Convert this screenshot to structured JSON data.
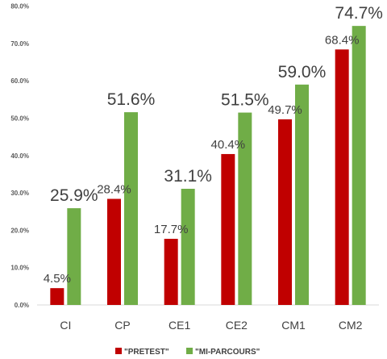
{
  "chart_data": {
    "type": "bar",
    "categories": [
      "CI",
      "CP",
      "CE1",
      "CE2",
      "CM1",
      "CM2"
    ],
    "series": [
      {
        "name": "\"PRETEST\"",
        "values": [
          4.5,
          28.4,
          17.7,
          40.4,
          49.7,
          68.4
        ],
        "labels": [
          "4.5%",
          "28.4%",
          "17.7%",
          "40.4%",
          "49.7%",
          "68.4%"
        ],
        "color": "#c00000"
      },
      {
        "name": "\"MI-PARCOURS\"",
        "values": [
          25.9,
          51.6,
          31.1,
          51.5,
          59.0,
          74.7
        ],
        "labels": [
          "25.9%",
          "51.6%",
          "31.1%",
          "51.5%",
          "59.0%",
          "74.7%"
        ],
        "color": "#70ad47"
      }
    ],
    "yticks": [
      "0.0%",
      "10.0%",
      "20.0%",
      "30.0%",
      "40.0%",
      "50.0%",
      "60.0%",
      "70.0%",
      "80.0%"
    ],
    "ylim": [
      0,
      80
    ],
    "grid": false,
    "legend": "bottom"
  }
}
